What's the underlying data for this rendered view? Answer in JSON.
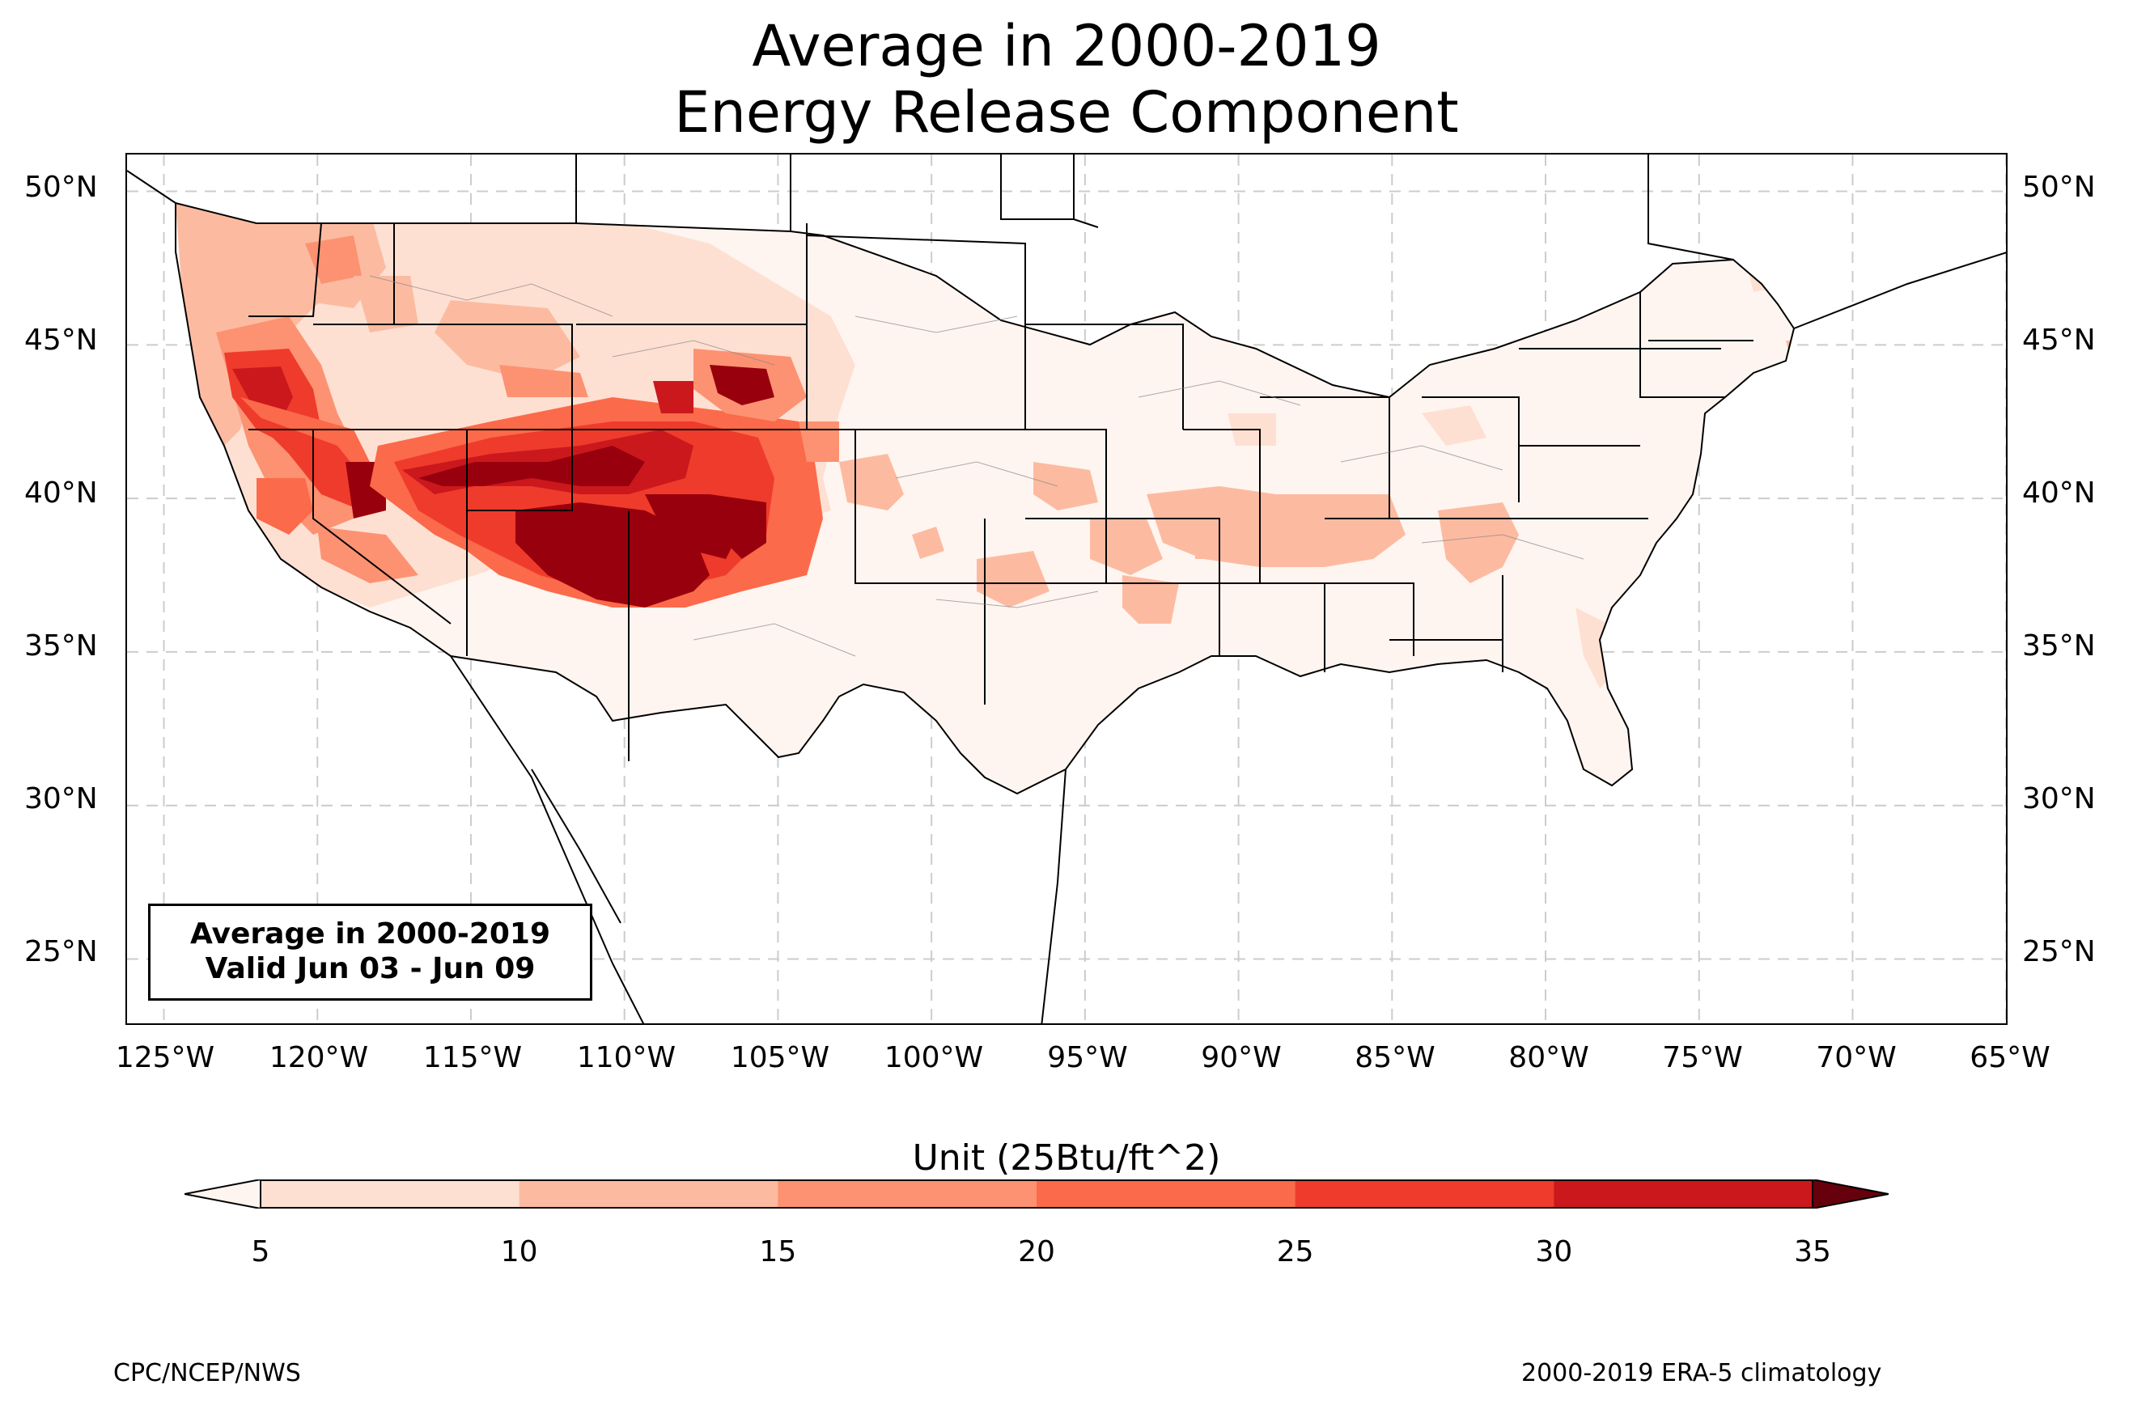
{
  "title": {
    "line1": "Average in 2000-2019",
    "line2": "Energy Release Component"
  },
  "info_box": {
    "line1": "Average in 2000-2019",
    "line2": "Valid Jun 03 - Jun 09"
  },
  "colorbar": {
    "title": "Unit (25Btu/ft^2)",
    "ticks": [
      "5",
      "10",
      "15",
      "20",
      "25",
      "30",
      "35"
    ],
    "colors": [
      "#fee0d2",
      "#fcbba1",
      "#fc9272",
      "#fb6a4a",
      "#ef3b2c",
      "#cb181d",
      "#99000d"
    ],
    "under_color": "#fff5f0",
    "over_color": "#67000d"
  },
  "lat_labels": [
    "50°N",
    "45°N",
    "40°N",
    "35°N",
    "30°N",
    "25°N"
  ],
  "lon_labels": [
    "125°W",
    "120°W",
    "115°W",
    "110°W",
    "105°W",
    "100°W",
    "95°W",
    "90°W",
    "85°W",
    "80°W",
    "75°W",
    "70°W",
    "65°W"
  ],
  "footer": {
    "left": "CPC/NCEP/NWS",
    "right": "2000-2019 ERA-5 climatology"
  },
  "map": {
    "region": "Contiguous United States",
    "lon_range": [
      -126.2,
      -64.9
    ],
    "lat_range": [
      22.8,
      51.2
    ],
    "gridlines": true,
    "field_description": "High ERC values (25-35+) concentrated over Arizona, New Mexico, Utah, Nevada and California; low values (<5) across the central and eastern US"
  }
}
